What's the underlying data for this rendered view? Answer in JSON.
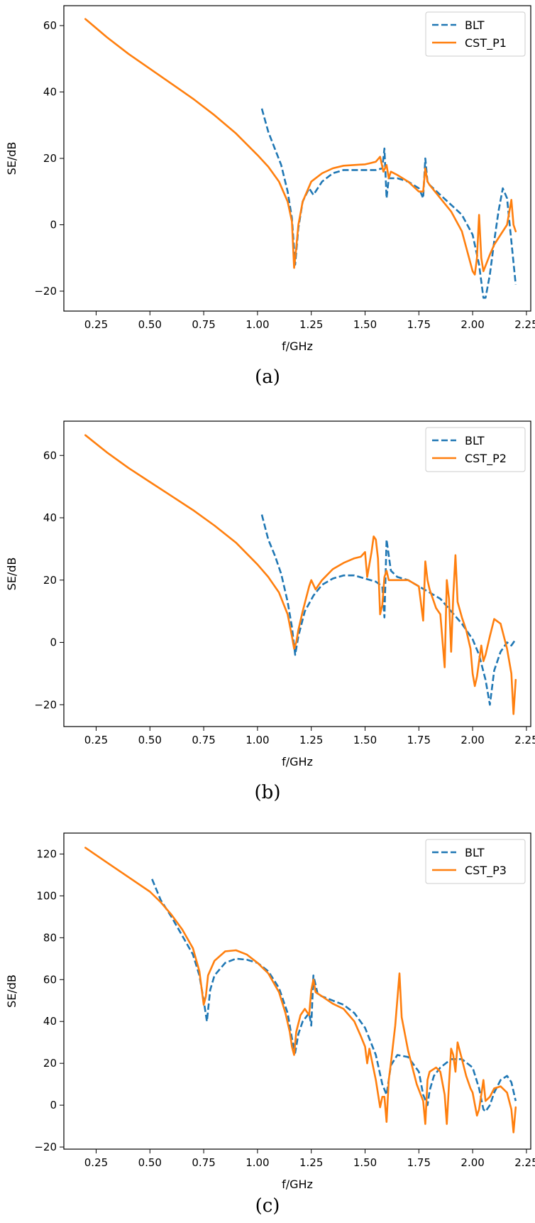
{
  "colors": {
    "blt": "#1f77b4",
    "cst": "#ff7f0e"
  },
  "chart_data": [
    {
      "type": "line",
      "caption": "(a)",
      "xlabel": "f/GHz",
      "ylabel": "SE/dB",
      "xlim": [
        0.1,
        2.27
      ],
      "ylim": [
        -26,
        66
      ],
      "xticks": [
        0.25,
        0.5,
        0.75,
        1.0,
        1.25,
        1.5,
        1.75,
        2.0,
        2.25
      ],
      "xtick_labels": [
        "0.25",
        "0.50",
        "0.75",
        "1.00",
        "1.25",
        "1.50",
        "1.75",
        "2.00",
        "2.25"
      ],
      "yticks": [
        -20,
        0,
        20,
        40,
        60
      ],
      "ytick_labels": [
        "−20",
        "0",
        "20",
        "40",
        "60"
      ],
      "legend_position": "top-right",
      "series": [
        {
          "name": "BLT",
          "style": "dashed",
          "x": [
            1.02,
            1.05,
            1.08,
            1.11,
            1.14,
            1.16,
            1.175,
            1.19,
            1.21,
            1.24,
            1.26,
            1.3,
            1.35,
            1.4,
            1.45,
            1.5,
            1.55,
            1.58,
            1.59,
            1.6,
            1.61,
            1.65,
            1.7,
            1.75,
            1.77,
            1.78,
            1.79,
            1.8,
            1.85,
            1.9,
            1.95,
            2.0,
            2.03,
            2.05,
            2.06,
            2.08,
            2.1,
            2.12,
            2.14,
            2.16,
            2.18,
            2.2
          ],
          "y": [
            35,
            28,
            23,
            18,
            10,
            2,
            -12,
            -1,
            7,
            11,
            9,
            13,
            15.5,
            16.5,
            16.5,
            16.5,
            16.5,
            17,
            23,
            8,
            14,
            14,
            13,
            11,
            8,
            20,
            13,
            12,
            9,
            6,
            3,
            -3,
            -12,
            -22,
            -22,
            -15,
            -5,
            4,
            11,
            8,
            -5,
            -18
          ]
        },
        {
          "name": "CST_P1",
          "style": "solid",
          "x": [
            0.2,
            0.3,
            0.4,
            0.5,
            0.6,
            0.7,
            0.8,
            0.9,
            1.0,
            1.05,
            1.1,
            1.14,
            1.16,
            1.17,
            1.18,
            1.19,
            1.21,
            1.25,
            1.3,
            1.35,
            1.4,
            1.45,
            1.5,
            1.52,
            1.55,
            1.57,
            1.585,
            1.6,
            1.61,
            1.62,
            1.65,
            1.7,
            1.75,
            1.77,
            1.78,
            1.79,
            1.8,
            1.85,
            1.9,
            1.95,
            2.0,
            2.01,
            2.02,
            2.03,
            2.04,
            2.05,
            2.08,
            2.1,
            2.13,
            2.16,
            2.18,
            2.19,
            2.2
          ],
          "y": [
            62,
            56.5,
            51.5,
            47,
            42.5,
            38,
            33,
            27.5,
            21,
            17.5,
            13,
            7,
            1,
            -13,
            -7,
            0,
            7,
            13,
            15.5,
            17,
            17.8,
            18,
            18.2,
            18.5,
            19,
            20.5,
            16,
            18,
            14,
            16,
            15,
            13,
            10,
            10,
            17,
            13,
            12,
            8,
            4,
            -2,
            -14,
            -15,
            -10,
            3,
            -10,
            -14,
            -9,
            -6,
            -3,
            0,
            7.5,
            0,
            -2
          ]
        }
      ]
    },
    {
      "type": "line",
      "caption": "(b)",
      "xlabel": "f/GHz",
      "ylabel": "SE/dB",
      "xlim": [
        0.1,
        2.27
      ],
      "ylim": [
        -27,
        71
      ],
      "xticks": [
        0.25,
        0.5,
        0.75,
        1.0,
        1.25,
        1.5,
        1.75,
        2.0,
        2.25
      ],
      "xtick_labels": [
        "0.25",
        "0.50",
        "0.75",
        "1.00",
        "1.25",
        "1.50",
        "1.75",
        "2.00",
        "2.25"
      ],
      "yticks": [
        -20,
        0,
        20,
        40,
        60
      ],
      "ytick_labels": [
        "−20",
        "0",
        "20",
        "40",
        "60"
      ],
      "legend_position": "top-right",
      "series": [
        {
          "name": "BLT",
          "style": "dashed",
          "x": [
            1.02,
            1.05,
            1.08,
            1.11,
            1.14,
            1.16,
            1.175,
            1.19,
            1.22,
            1.26,
            1.3,
            1.35,
            1.4,
            1.45,
            1.5,
            1.55,
            1.58,
            1.59,
            1.6,
            1.62,
            1.65,
            1.7,
            1.75,
            1.8,
            1.85,
            1.9,
            1.95,
            2.0,
            2.03,
            2.06,
            2.08,
            2.1,
            2.13,
            2.16,
            2.18,
            2.2
          ],
          "y": [
            41,
            33,
            28,
            22,
            13,
            5,
            -4,
            2,
            10,
            15,
            18.5,
            20.5,
            21.5,
            21.5,
            20.5,
            19.5,
            18,
            8,
            33,
            23,
            21,
            20,
            18,
            16,
            14,
            10,
            6,
            1,
            -4,
            -12,
            -20,
            -9,
            -3,
            0,
            -1,
            1
          ]
        },
        {
          "name": "CST_P2",
          "style": "solid",
          "x": [
            0.2,
            0.3,
            0.4,
            0.5,
            0.6,
            0.7,
            0.8,
            0.9,
            1.0,
            1.05,
            1.1,
            1.14,
            1.16,
            1.17,
            1.18,
            1.19,
            1.21,
            1.24,
            1.25,
            1.27,
            1.3,
            1.35,
            1.4,
            1.45,
            1.48,
            1.5,
            1.51,
            1.53,
            1.54,
            1.55,
            1.56,
            1.57,
            1.58,
            1.59,
            1.6,
            1.61,
            1.65,
            1.7,
            1.75,
            1.77,
            1.78,
            1.79,
            1.8,
            1.83,
            1.85,
            1.87,
            1.88,
            1.89,
            1.9,
            1.91,
            1.92,
            1.93,
            1.95,
            1.97,
            1.99,
            2.0,
            2.01,
            2.02,
            2.03,
            2.04,
            2.05,
            2.06,
            2.08,
            2.1,
            2.13,
            2.16,
            2.18,
            2.19,
            2.2
          ],
          "y": [
            66.5,
            61,
            56,
            51.5,
            47,
            42.5,
            37.5,
            32,
            25,
            21,
            16,
            9,
            2,
            -2,
            0,
            4,
            10,
            18,
            20,
            17,
            20,
            23.5,
            25.5,
            27,
            27.5,
            29,
            21,
            29,
            34,
            33,
            27,
            9,
            12,
            21,
            23,
            20,
            20,
            20,
            18,
            7,
            26,
            20,
            17,
            11,
            9,
            -8,
            20,
            14,
            -3,
            15,
            28,
            13,
            8,
            4,
            -2,
            -10,
            -14,
            -11,
            -6,
            -1,
            -6,
            -4,
            2,
            7.5,
            6,
            -2,
            -10,
            -23,
            -12
          ]
        }
      ]
    },
    {
      "type": "line",
      "caption": "(c)",
      "xlabel": "f/GHz",
      "ylabel": "SE/dB",
      "xlim": [
        0.1,
        2.27
      ],
      "ylim": [
        -21,
        130
      ],
      "xticks": [
        0.25,
        0.5,
        0.75,
        1.0,
        1.25,
        1.5,
        1.75,
        2.0,
        2.25
      ],
      "xtick_labels": [
        "0.25",
        "0.50",
        "0.75",
        "1.00",
        "1.25",
        "1.50",
        "1.75",
        "2.00",
        "2.25"
      ],
      "yticks": [
        -20,
        0,
        20,
        40,
        60,
        80,
        100,
        120
      ],
      "ytick_labels": [
        "−20",
        "0",
        "20",
        "40",
        "60",
        "80",
        "100",
        "120"
      ],
      "legend_position": "top-right",
      "series": [
        {
          "name": "BLT",
          "style": "dashed",
          "x": [
            0.51,
            0.55,
            0.6,
            0.65,
            0.7,
            0.73,
            0.75,
            0.765,
            0.78,
            0.8,
            0.85,
            0.9,
            0.95,
            1.0,
            1.05,
            1.1,
            1.14,
            1.16,
            1.175,
            1.19,
            1.21,
            1.24,
            1.25,
            1.26,
            1.28,
            1.3,
            1.35,
            1.4,
            1.45,
            1.5,
            1.55,
            1.58,
            1.6,
            1.62,
            1.65,
            1.7,
            1.75,
            1.77,
            1.79,
            1.8,
            1.82,
            1.85,
            1.9,
            1.95,
            2.0,
            2.03,
            2.05,
            2.06,
            2.08,
            2.1,
            2.13,
            2.16,
            2.18,
            2.2
          ],
          "y": [
            108,
            98,
            90,
            81,
            72,
            62,
            50,
            40,
            55,
            62,
            68,
            70,
            69.5,
            68,
            64,
            56,
            44,
            32,
            25,
            34,
            40,
            44,
            38,
            62,
            53,
            52,
            50,
            48,
            44,
            37,
            24,
            10,
            5,
            19,
            24,
            23,
            16,
            5,
            0,
            7,
            14,
            18,
            22,
            22,
            18,
            8,
            -2,
            -3,
            0,
            6,
            12,
            14,
            11,
            2
          ]
        },
        {
          "name": "CST_P3",
          "style": "solid",
          "x": [
            0.2,
            0.3,
            0.4,
            0.5,
            0.55,
            0.6,
            0.65,
            0.7,
            0.73,
            0.75,
            0.76,
            0.77,
            0.8,
            0.85,
            0.9,
            0.95,
            1.0,
            1.05,
            1.1,
            1.13,
            1.15,
            1.16,
            1.17,
            1.18,
            1.2,
            1.22,
            1.24,
            1.25,
            1.26,
            1.27,
            1.3,
            1.35,
            1.4,
            1.45,
            1.48,
            1.5,
            1.51,
            1.52,
            1.55,
            1.57,
            1.58,
            1.59,
            1.6,
            1.61,
            1.62,
            1.64,
            1.66,
            1.67,
            1.7,
            1.74,
            1.77,
            1.78,
            1.79,
            1.8,
            1.83,
            1.85,
            1.87,
            1.88,
            1.89,
            1.9,
            1.91,
            1.92,
            1.93,
            1.95,
            1.97,
            1.99,
            2.0,
            2.02,
            2.03,
            2.04,
            2.05,
            2.06,
            2.08,
            2.1,
            2.13,
            2.16,
            2.18,
            2.19,
            2.2
          ],
          "y": [
            123,
            116,
            109,
            102,
            97,
            91,
            84,
            75,
            64,
            48,
            52,
            62,
            69,
            73.5,
            74,
            72,
            68,
            63,
            54,
            44,
            35,
            28,
            24,
            35,
            43,
            46,
            43,
            55,
            60,
            54,
            52,
            48.5,
            46,
            40,
            33,
            28,
            20,
            27,
            12,
            -1,
            4,
            4,
            -8,
            12,
            20,
            38,
            63,
            42,
            26,
            10,
            2,
            -9,
            12,
            16,
            18,
            16,
            5,
            -9,
            10,
            27,
            24,
            16,
            30,
            22,
            14,
            8,
            6,
            -5,
            -2,
            5,
            12,
            2,
            4,
            8,
            9,
            6,
            -2,
            -13,
            -1
          ]
        }
      ]
    }
  ]
}
